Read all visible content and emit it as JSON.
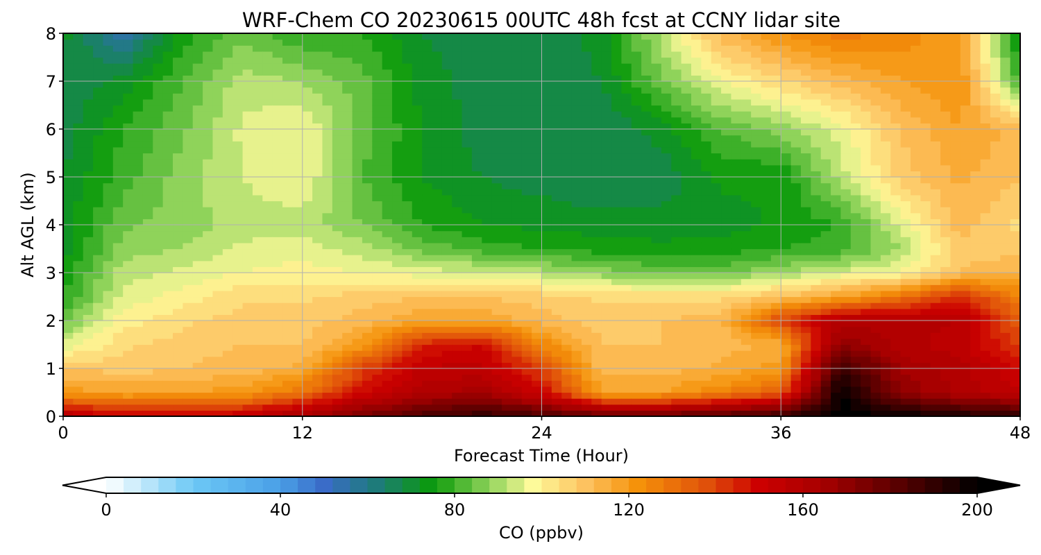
{
  "chart_data": {
    "type": "heatmap",
    "title": "WRF-Chem CO  20230615 00UTC 48h fcst at CCNY lidar site",
    "xlabel": "Forecast Time (Hour)",
    "ylabel": "Alt AGL (km)",
    "xlim": [
      0,
      48
    ],
    "ylim": [
      0,
      8
    ],
    "x_ticks": [
      "0",
      "12",
      "24",
      "36",
      "48"
    ],
    "y_ticks": [
      "0",
      "1",
      "2",
      "3",
      "4",
      "5",
      "6",
      "7",
      "8"
    ],
    "grid": true,
    "colorbar": {
      "label": "CO  (ppbv)",
      "range": [
        0,
        200
      ],
      "ticks": [
        "0",
        "40",
        "80",
        "120",
        "160",
        "200"
      ],
      "extend": "both",
      "colors": [
        {
          "value": 0,
          "color": "#ffffff"
        },
        {
          "value": 20,
          "color": "#6cc8f5"
        },
        {
          "value": 40,
          "color": "#4a9fe6"
        },
        {
          "value": 50,
          "color": "#3a6cc8"
        },
        {
          "value": 62,
          "color": "#1e7b7a"
        },
        {
          "value": 75,
          "color": "#0a9a0a"
        },
        {
          "value": 88,
          "color": "#8fd35a"
        },
        {
          "value": 98,
          "color": "#fdfa9a"
        },
        {
          "value": 110,
          "color": "#fdc260"
        },
        {
          "value": 122,
          "color": "#f5920a"
        },
        {
          "value": 138,
          "color": "#e0500a"
        },
        {
          "value": 150,
          "color": "#cc0000"
        },
        {
          "value": 165,
          "color": "#a50000"
        },
        {
          "value": 185,
          "color": "#4a0000"
        },
        {
          "value": 200,
          "color": "#000000"
        }
      ]
    },
    "x": [
      0,
      3,
      6,
      9,
      12,
      15,
      18,
      21,
      24,
      27,
      30,
      33,
      36,
      39,
      42,
      45,
      48
    ],
    "y": [
      0,
      0.5,
      1,
      1.5,
      2,
      2.5,
      3,
      3.5,
      4,
      5,
      6,
      7,
      8
    ],
    "z": [
      [
        160,
        150,
        150,
        155,
        165,
        175,
        185,
        190,
        185,
        180,
        180,
        185,
        190,
        200,
        200,
        195,
        190
      ],
      [
        120,
        118,
        118,
        120,
        130,
        150,
        160,
        165,
        150,
        118,
        118,
        125,
        135,
        200,
        170,
        160,
        155
      ],
      [
        110,
        108,
        110,
        112,
        115,
        140,
        155,
        155,
        140,
        112,
        112,
        115,
        120,
        190,
        165,
        160,
        150
      ],
      [
        95,
        105,
        108,
        110,
        110,
        120,
        145,
        150,
        125,
        110,
        110,
        112,
        115,
        170,
        160,
        155,
        140
      ],
      [
        85,
        100,
        105,
        108,
        108,
        112,
        118,
        118,
        112,
        108,
        110,
        112,
        140,
        160,
        160,
        158,
        135
      ],
      [
        78,
        95,
        100,
        105,
        105,
        108,
        110,
        110,
        108,
        105,
        105,
        105,
        110,
        118,
        130,
        145,
        125
      ],
      [
        75,
        92,
        95,
        98,
        100,
        98,
        96,
        95,
        92,
        88,
        85,
        85,
        90,
        95,
        98,
        110,
        115
      ],
      [
        72,
        88,
        90,
        95,
        96,
        92,
        85,
        80,
        78,
        76,
        75,
        76,
        78,
        80,
        90,
        108,
        108
      ],
      [
        72,
        85,
        88,
        92,
        92,
        86,
        78,
        74,
        73,
        72,
        72,
        72,
        75,
        78,
        95,
        112,
        105
      ],
      [
        70,
        80,
        88,
        94,
        98,
        82,
        74,
        70,
        68,
        66,
        67,
        75,
        74,
        92,
        108,
        115,
        110
      ],
      [
        68,
        78,
        85,
        95,
        98,
        84,
        74,
        68,
        66,
        66,
        72,
        82,
        88,
        96,
        110,
        118,
        112
      ],
      [
        66,
        72,
        82,
        92,
        90,
        84,
        72,
        68,
        66,
        70,
        85,
        98,
        105,
        112,
        118,
        122,
        80
      ],
      [
        72,
        55,
        76,
        85,
        78,
        78,
        70,
        67,
        66,
        72,
        92,
        112,
        122,
        128,
        125,
        118,
        70
      ]
    ]
  }
}
